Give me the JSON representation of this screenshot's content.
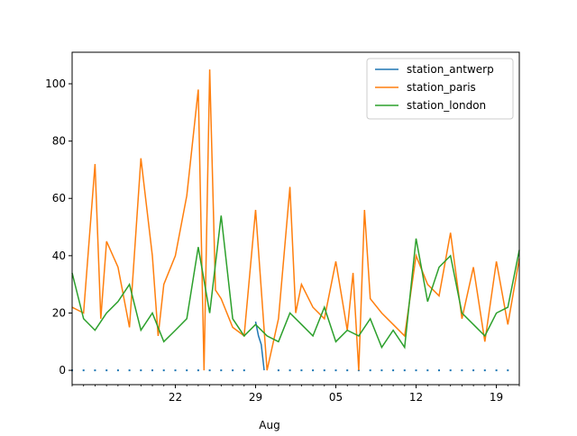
{
  "chart_data": {
    "type": "line",
    "title": "",
    "xlabel": "Aug",
    "ylabel": "",
    "xlim": [
      "2023-07-13",
      "2023-08-21"
    ],
    "ylim": [
      -5,
      111
    ],
    "x_tick_labels": [
      {
        "date": "2023-07-22",
        "label": "22"
      },
      {
        "date": "2023-07-29",
        "label": "29"
      },
      {
        "date": "2023-08-05",
        "label": "05"
      },
      {
        "date": "2023-08-12",
        "label": "12"
      },
      {
        "date": "2023-08-19",
        "label": "19"
      }
    ],
    "y_ticks": [
      0,
      20,
      40,
      60,
      80,
      100
    ],
    "legend": {
      "position": "upper right",
      "entries": [
        "station_antwerp",
        "station_paris",
        "station_london"
      ]
    },
    "grid": false,
    "series": [
      {
        "name": "station_antwerp",
        "color": "#1f77b4",
        "style": "segments",
        "segments": [
          {
            "x": [
              "2023-07-29",
              "2023-07-29T06:00",
              "2023-07-29T12:00",
              "2023-07-29T18:00"
            ],
            "y": [
              17,
              12,
              9,
              0
            ]
          }
        ],
        "dots": {
          "x_start": "2023-07-13",
          "x_end": "2023-08-20",
          "step_hours": 24,
          "y": 0,
          "gap": [
            "2023-07-29",
            "2023-07-30"
          ]
        }
      },
      {
        "name": "station_paris",
        "color": "#ff7f0e",
        "style": "line",
        "x": [
          "2023-07-13",
          "2023-07-14",
          "2023-07-15",
          "2023-07-15T12:00",
          "2023-07-16",
          "2023-07-17",
          "2023-07-18",
          "2023-07-19",
          "2023-07-20",
          "2023-07-20T12:00",
          "2023-07-21",
          "2023-07-22",
          "2023-07-23",
          "2023-07-24",
          "2023-07-24T12:00",
          "2023-07-25",
          "2023-07-25T12:00",
          "2023-07-26",
          "2023-07-27",
          "2023-07-28",
          "2023-07-29",
          "2023-07-30",
          "2023-07-31",
          "2023-08-01",
          "2023-08-01T12:00",
          "2023-08-02",
          "2023-08-03",
          "2023-08-04",
          "2023-08-05",
          "2023-08-06",
          "2023-08-06T12:00",
          "2023-08-07",
          "2023-08-07T12:00",
          "2023-08-08",
          "2023-08-09",
          "2023-08-10",
          "2023-08-11",
          "2023-08-12",
          "2023-08-13",
          "2023-08-14",
          "2023-08-15",
          "2023-08-16",
          "2023-08-17",
          "2023-08-18",
          "2023-08-19",
          "2023-08-20",
          "2023-08-21"
        ],
        "y": [
          22,
          20,
          72,
          18,
          45,
          36,
          15,
          74,
          40,
          12,
          30,
          40,
          61,
          98,
          0,
          105,
          28,
          25,
          15,
          12,
          56,
          0,
          18,
          64,
          20,
          30,
          22,
          18,
          38,
          14,
          34,
          0,
          56,
          25,
          20,
          16,
          12,
          40,
          30,
          26,
          48,
          18,
          36,
          10,
          38,
          16,
          39
        ]
      },
      {
        "name": "station_london",
        "color": "#2ca02c",
        "style": "line",
        "x": [
          "2023-07-13",
          "2023-07-14",
          "2023-07-15",
          "2023-07-16",
          "2023-07-17",
          "2023-07-18",
          "2023-07-19",
          "2023-07-20",
          "2023-07-21",
          "2023-07-22",
          "2023-07-23",
          "2023-07-24",
          "2023-07-25",
          "2023-07-26",
          "2023-07-27",
          "2023-07-28",
          "2023-07-29",
          "2023-07-30",
          "2023-07-31",
          "2023-08-01",
          "2023-08-02",
          "2023-08-03",
          "2023-08-04",
          "2023-08-05",
          "2023-08-06",
          "2023-08-07",
          "2023-08-08",
          "2023-08-09",
          "2023-08-10",
          "2023-08-11",
          "2023-08-12",
          "2023-08-13",
          "2023-08-14",
          "2023-08-15",
          "2023-08-16",
          "2023-08-17",
          "2023-08-18",
          "2023-08-19",
          "2023-08-20",
          "2023-08-21"
        ],
        "y": [
          34,
          18,
          14,
          20,
          24,
          30,
          14,
          20,
          10,
          14,
          18,
          43,
          20,
          54,
          18,
          12,
          16,
          12,
          10,
          20,
          16,
          12,
          22,
          10,
          14,
          12,
          18,
          8,
          14,
          8,
          46,
          24,
          36,
          40,
          20,
          16,
          12,
          20,
          22,
          42
        ]
      }
    ]
  }
}
